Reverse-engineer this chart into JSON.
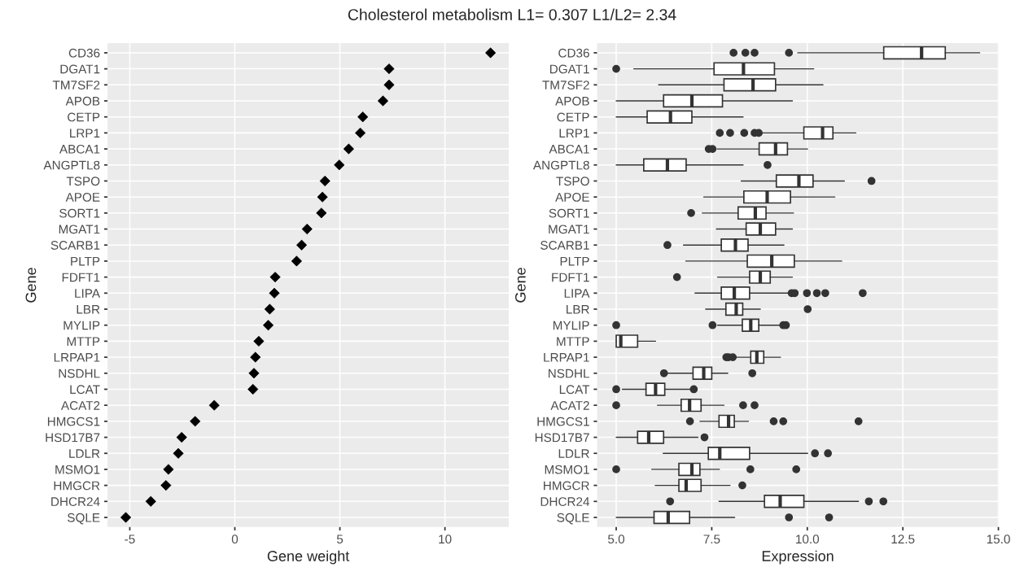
{
  "chart_data": [
    {
      "type": "scatter",
      "orientation": "horizontal",
      "title": "Cholesterol metabolism L1= 0.307 L1/L2= 2.34",
      "xlabel": "Gene weight",
      "ylabel": "Gene",
      "marker": "diamond",
      "grid": true,
      "categories": [
        "CD36",
        "DGAT1",
        "TM7SF2",
        "APOB",
        "CETP",
        "LRP1",
        "ABCA1",
        "ANGPTL8",
        "TSPO",
        "APOE",
        "SORT1",
        "MGAT1",
        "SCARB1",
        "PLTP",
        "FDFT1",
        "LIPA",
        "LBR",
        "MYLIP",
        "MTTP",
        "LRPAP1",
        "NSDHL",
        "LCAT",
        "ACAT2",
        "HMGCS1",
        "HSD17B7",
        "LDLR",
        "MSMO1",
        "HMGCR",
        "DHCR24",
        "SQLE"
      ],
      "series": [
        {
          "color": "#000000",
          "values": [
            12.17,
            7.34,
            7.34,
            7.05,
            6.09,
            5.97,
            5.42,
            4.97,
            4.29,
            4.17,
            4.12,
            3.44,
            3.18,
            2.94,
            1.92,
            1.88,
            1.66,
            1.59,
            1.14,
            0.98,
            0.91,
            0.86,
            -0.98,
            -1.89,
            -2.53,
            -2.69,
            -3.16,
            -3.28,
            -4.0,
            -5.19
          ]
        }
      ],
      "xlim": [
        -6.06,
        13.04
      ],
      "xticks": [
        -5,
        0,
        5,
        10
      ]
    },
    {
      "type": "box",
      "orientation": "horizontal",
      "xlabel": "Expression",
      "ylabel": "Gene",
      "grid": true,
      "categories": [
        "CD36",
        "DGAT1",
        "TM7SF2",
        "APOB",
        "CETP",
        "LRP1",
        "ABCA1",
        "ANGPTL8",
        "TSPO",
        "APOE",
        "SORT1",
        "MGAT1",
        "SCARB1",
        "PLTP",
        "FDFT1",
        "LIPA",
        "LBR",
        "MYLIP",
        "MTTP",
        "LRPAP1",
        "NSDHL",
        "LCAT",
        "ACAT2",
        "HMGCS1",
        "HSD17B7",
        "LDLR",
        "MSMO1",
        "HMGCR",
        "DHCR24",
        "SQLE"
      ],
      "boxes": [
        {
          "low": 9.75,
          "q1": 12.0,
          "median": 12.99,
          "q3": 13.61,
          "high": 14.51,
          "outliers": [
            8.07,
            8.38,
            8.62,
            9.52
          ]
        },
        {
          "low": 5.46,
          "q1": 7.56,
          "median": 8.33,
          "q3": 9.14,
          "high": 10.17,
          "outliers": [
            5.0
          ]
        },
        {
          "low": 6.11,
          "q1": 7.82,
          "median": 8.58,
          "q3": 9.17,
          "high": 10.41
        },
        {
          "low": 5.0,
          "q1": 6.24,
          "median": 6.98,
          "q3": 7.78,
          "high": 9.61
        },
        {
          "low": 5.0,
          "q1": 5.81,
          "median": 6.42,
          "q3": 6.98,
          "high": 8.32
        },
        {
          "low": 8.82,
          "q1": 9.91,
          "median": 10.4,
          "q3": 10.67,
          "high": 11.27,
          "outliers": [
            7.71,
            7.98,
            8.35,
            8.62,
            8.73
          ]
        },
        {
          "low": 7.64,
          "q1": 8.74,
          "median": 9.17,
          "q3": 9.48,
          "high": 10.01,
          "outliers": [
            7.42,
            7.52
          ]
        },
        {
          "low": 5.0,
          "q1": 5.72,
          "median": 6.34,
          "q3": 6.83,
          "high": 8.32,
          "outliers": [
            8.96
          ]
        },
        {
          "low": 8.27,
          "q1": 9.19,
          "median": 9.78,
          "q3": 10.15,
          "high": 10.97,
          "outliers": [
            11.68
          ]
        },
        {
          "low": 7.29,
          "q1": 8.34,
          "median": 8.95,
          "q3": 9.56,
          "high": 10.72
        },
        {
          "low": 7.25,
          "q1": 8.19,
          "median": 8.64,
          "q3": 8.92,
          "high": 9.64,
          "outliers": [
            6.96
          ]
        },
        {
          "low": 7.62,
          "q1": 8.4,
          "median": 8.77,
          "q3": 9.17,
          "high": 9.61
        },
        {
          "low": 6.76,
          "q1": 7.75,
          "median": 8.12,
          "q3": 8.45,
          "high": 9.39,
          "outliers": [
            6.34
          ]
        },
        {
          "low": 6.82,
          "q1": 8.43,
          "median": 9.07,
          "q3": 9.66,
          "high": 10.9
        },
        {
          "low": 7.65,
          "q1": 8.49,
          "median": 8.77,
          "q3": 9.03,
          "high": 9.61,
          "outliers": [
            6.59
          ]
        },
        {
          "low": 7.06,
          "q1": 7.75,
          "median": 8.09,
          "q3": 8.49,
          "high": 9.54,
          "outliers": [
            9.59,
            9.67,
            9.99,
            10.25,
            10.47,
            11.45
          ]
        },
        {
          "low": 7.34,
          "q1": 7.87,
          "median": 8.14,
          "q3": 8.31,
          "high": 8.77,
          "outliers": [
            10.01
          ]
        },
        {
          "low": 7.65,
          "q1": 8.3,
          "median": 8.52,
          "q3": 8.73,
          "high": 9.3,
          "outliers": [
            5.0,
            7.52,
            9.37,
            9.44
          ]
        },
        {
          "low": 5.0,
          "q1": 5.0,
          "median": 5.12,
          "q3": 5.56,
          "high": 6.03
        },
        {
          "low": 8.1,
          "q1": 8.52,
          "median": 8.68,
          "q3": 8.86,
          "high": 9.3,
          "outliers": [
            7.88,
            7.94,
            8.05
          ]
        },
        {
          "low": 6.3,
          "q1": 7.01,
          "median": 7.29,
          "q3": 7.5,
          "high": 7.92,
          "outliers": [
            6.25,
            8.56
          ]
        },
        {
          "low": 5.16,
          "q1": 5.78,
          "median": 6.03,
          "q3": 6.27,
          "high": 6.94,
          "outliers": [
            5.0,
            7.03
          ]
        },
        {
          "low": 6.08,
          "q1": 6.7,
          "median": 6.92,
          "q3": 7.22,
          "high": 7.82,
          "outliers": [
            5.0,
            8.32,
            8.62
          ]
        },
        {
          "low": 7.19,
          "q1": 7.69,
          "median": 7.94,
          "q3": 8.09,
          "high": 8.46,
          "outliers": [
            6.93,
            9.12,
            9.37,
            11.34
          ]
        },
        {
          "low": 5.0,
          "q1": 5.56,
          "median": 5.85,
          "q3": 6.24,
          "high": 7.14,
          "outliers": [
            7.31
          ]
        },
        {
          "low": 6.23,
          "q1": 7.41,
          "median": 7.71,
          "q3": 8.49,
          "high": 10.01,
          "outliers": [
            10.2,
            10.54
          ]
        },
        {
          "low": 5.93,
          "q1": 6.64,
          "median": 6.98,
          "q3": 7.19,
          "high": 7.7,
          "outliers": [
            5.0,
            8.51,
            9.71
          ]
        },
        {
          "low": 6.02,
          "q1": 6.64,
          "median": 6.83,
          "q3": 7.22,
          "high": 7.98,
          "outliers": [
            8.3
          ]
        },
        {
          "low": 7.69,
          "q1": 8.88,
          "median": 9.29,
          "q3": 9.91,
          "high": 11.34,
          "outliers": [
            6.41,
            11.61,
            11.99
          ]
        },
        {
          "low": 5.0,
          "q1": 5.99,
          "median": 6.36,
          "q3": 6.92,
          "high": 8.1,
          "outliers": [
            9.52,
            10.57
          ]
        }
      ],
      "xlim": [
        4.5,
        15.0
      ],
      "xticks": [
        {
          "value": 5,
          "label": "5.0"
        },
        {
          "value": 7.5,
          "label": "7.5"
        },
        {
          "value": 10,
          "label": "10.0"
        },
        {
          "value": 12.5,
          "label": "12.5"
        },
        {
          "value": 15,
          "label": "15.0"
        }
      ]
    }
  ]
}
